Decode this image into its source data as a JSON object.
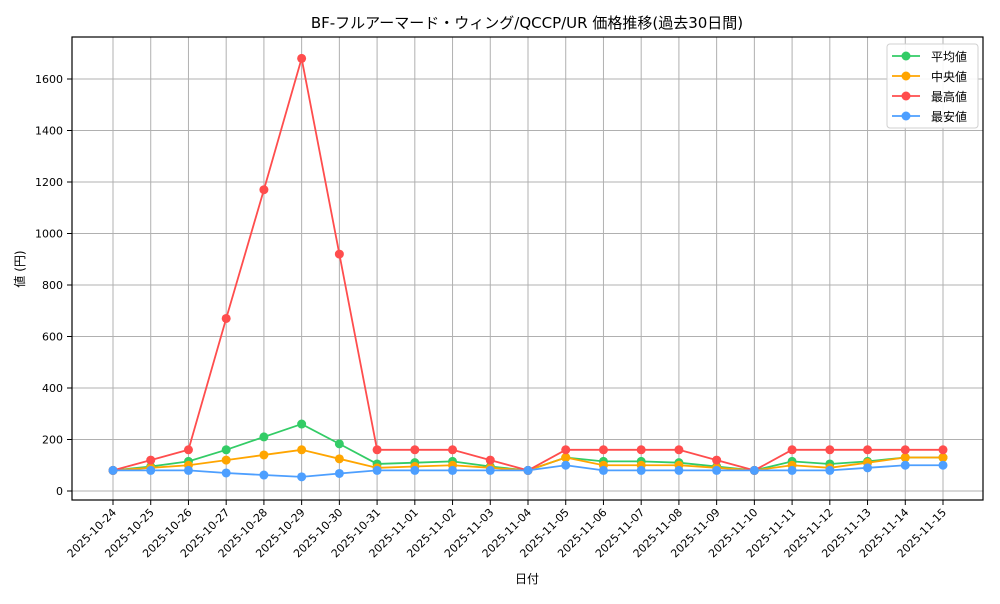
{
  "chart_data": {
    "type": "line",
    "title": "BF-フルアーマード・ウィング/QCCP/UR 価格推移(過去30日間)",
    "xlabel": "日付",
    "ylabel": "値 (円)",
    "ylim": [
      0,
      1750
    ],
    "yticks": [
      0,
      200,
      400,
      600,
      800,
      1000,
      1200,
      1400,
      1600
    ],
    "grid": true,
    "legend_position": "upper right",
    "categories": [
      "2025-10-24",
      "2025-10-25",
      "2025-10-26",
      "2025-10-27",
      "2025-10-28",
      "2025-10-29",
      "2025-10-30",
      "2025-10-31",
      "2025-11-01",
      "2025-11-02",
      "2025-11-03",
      "2025-11-04",
      "2025-11-05",
      "2025-11-06",
      "2025-11-07",
      "2025-11-08",
      "2025-11-09",
      "2025-11-10",
      "2025-11-11",
      "2025-11-12",
      "2025-11-13",
      "2025-11-14",
      "2025-11-15"
    ],
    "series": [
      {
        "name": "平均値",
        "color": "#33cc66",
        "values": [
          80,
          95,
          115,
          160,
          210,
          260,
          183,
          105,
          110,
          115,
          95,
          80,
          130,
          115,
          115,
          110,
          95,
          80,
          115,
          105,
          115,
          130,
          130
        ]
      },
      {
        "name": "中央値",
        "color": "#ffa500",
        "values": [
          80,
          90,
          100,
          120,
          140,
          160,
          125,
          90,
          95,
          100,
          90,
          80,
          130,
          100,
          100,
          100,
          90,
          80,
          100,
          90,
          110,
          130,
          130
        ]
      },
      {
        "name": "最高値",
        "color": "#ff4d4d",
        "values": [
          80,
          120,
          160,
          670,
          1170,
          1680,
          920,
          160,
          160,
          160,
          120,
          80,
          160,
          160,
          160,
          160,
          120,
          80,
          160,
          160,
          160,
          160,
          160
        ]
      },
      {
        "name": "最安値",
        "color": "#4d9fff",
        "values": [
          80,
          80,
          80,
          70,
          62,
          55,
          68,
          80,
          80,
          80,
          80,
          80,
          100,
          80,
          80,
          80,
          80,
          80,
          80,
          80,
          90,
          100,
          100
        ]
      }
    ]
  }
}
